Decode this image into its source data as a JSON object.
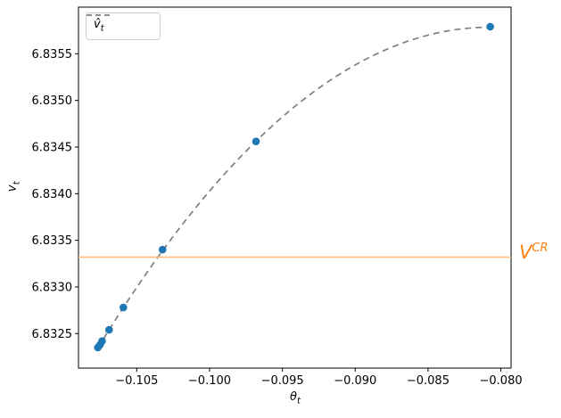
{
  "chart_data": {
    "type": "scatter",
    "title": "",
    "xlabel": {
      "base": "θ",
      "sub": "t"
    },
    "ylabel": {
      "base": "v",
      "sub": "t"
    },
    "xlim": [
      -0.109,
      -0.0793
    ],
    "ylim": [
      6.83213,
      6.836
    ],
    "grid": false,
    "x_ticks": [
      {
        "value": -0.105,
        "label": "−0.105"
      },
      {
        "value": -0.1,
        "label": "−0.100"
      },
      {
        "value": -0.095,
        "label": "−0.095"
      },
      {
        "value": -0.09,
        "label": "−0.090"
      },
      {
        "value": -0.085,
        "label": "−0.085"
      },
      {
        "value": -0.08,
        "label": "−0.080"
      }
    ],
    "y_ticks": [
      {
        "value": 6.8325,
        "label": "6.8325"
      },
      {
        "value": 6.833,
        "label": "6.8330"
      },
      {
        "value": 6.8335,
        "label": "6.8335"
      },
      {
        "value": 6.834,
        "label": "6.8340"
      },
      {
        "value": 6.8345,
        "label": "6.8345"
      },
      {
        "value": 6.835,
        "label": "6.8350"
      },
      {
        "value": 6.8355,
        "label": "6.8355"
      }
    ],
    "legend": {
      "position": "upper-left",
      "entries": [
        {
          "label_base": "v̂",
          "label_sub": "t",
          "line_style": "dashed",
          "color": "#7f7f7f"
        }
      ]
    },
    "series": [
      {
        "name": "fitted-value-curve",
        "type": "line",
        "style": "dashed",
        "color": "#7f7f7f",
        "line_width": 1.7,
        "dash": [
          7,
          5
        ],
        "quadratic_fit": {
          "a": -4.7556,
          "b": -0.76834,
          "c": 6.80475
        },
        "x_domain": [
          -0.10767,
          -0.08073
        ]
      },
      {
        "name": "iterate-points",
        "type": "scatter",
        "color": "#1f77b4",
        "marker_radius": 4.3,
        "points": [
          [
            -0.10767,
            6.83235
          ],
          [
            -0.10752,
            6.83238
          ],
          [
            -0.10738,
            6.83242
          ],
          [
            -0.1069,
            6.83254
          ],
          [
            -0.10592,
            6.83278
          ],
          [
            -0.10323,
            6.8334
          ],
          [
            -0.09681,
            6.83456
          ],
          [
            -0.08073,
            6.83579
          ]
        ]
      },
      {
        "name": "critical-value-line",
        "type": "hline",
        "y": 6.83332,
        "color": "#fdbf86",
        "line_width": 1.8
      }
    ],
    "annotations": [
      {
        "text_base": "V",
        "text_sup": "CR",
        "color": "#ff7f0e",
        "y": 6.83332,
        "position": "right-of-axes"
      }
    ],
    "axis_color": "#000000",
    "tick_label_color": "#000000",
    "tick_font_size": 13
  }
}
